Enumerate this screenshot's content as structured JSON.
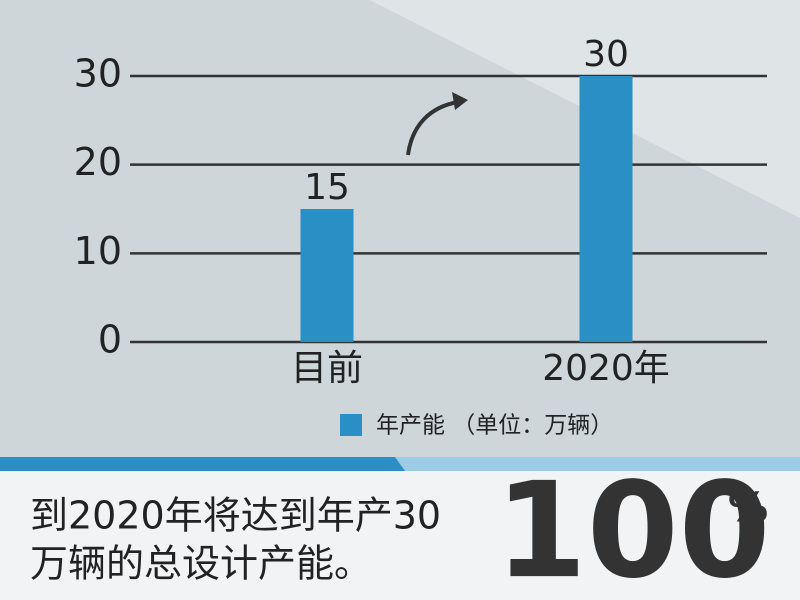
{
  "chart_data": {
    "type": "bar",
    "categories": [
      "目前",
      "2020年"
    ],
    "series": [
      {
        "name": "年产能 （单位：万辆）",
        "color": "#2a8fc4",
        "values": [
          15,
          30
        ]
      }
    ],
    "ylim": [
      0,
      30
    ],
    "yticks": [
      0,
      10,
      20,
      30
    ],
    "grid": true,
    "legend": "bottom"
  },
  "footer": {
    "lines": [
      "到2020年将达到年产30",
      "万辆的总设计产能。"
    ],
    "highlight": "100",
    "highlight_unit": "%"
  }
}
